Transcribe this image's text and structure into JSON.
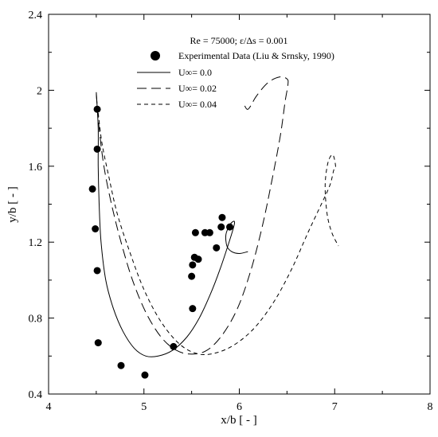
{
  "chart_data": {
    "type": "scatter",
    "title": "",
    "xlabel": "x/b [ - ]",
    "ylabel": "y/b [ - ]",
    "xlim": [
      4,
      8
    ],
    "ylim": [
      0.4,
      2.4
    ],
    "x_ticks": [
      "4",
      "5",
      "6",
      "7",
      "8"
    ],
    "y_ticks": [
      "0.4",
      "0.8",
      "1.2",
      "1.6",
      "2",
      "2.4"
    ],
    "grid": false,
    "legend_position": "top-center",
    "legend_header": "Re = 75000; ε/Δs = 0.001",
    "legend": {
      "markers": "Experimental Data (Liu & Srnsky, 1990)",
      "u0": "U∞= 0.0",
      "u002": "U∞= 0.02",
      "u004": "U∞= 0.04"
    },
    "experimental_points": [
      {
        "x": 4.51,
        "y": 1.9
      },
      {
        "x": 4.51,
        "y": 1.69
      },
      {
        "x": 4.46,
        "y": 1.48
      },
      {
        "x": 4.49,
        "y": 1.27
      },
      {
        "x": 4.51,
        "y": 1.05
      },
      {
        "x": 4.52,
        "y": 0.67
      },
      {
        "x": 4.76,
        "y": 0.55
      },
      {
        "x": 5.01,
        "y": 0.5
      },
      {
        "x": 5.31,
        "y": 0.65
      },
      {
        "x": 5.51,
        "y": 0.85
      },
      {
        "x": 5.5,
        "y": 1.02
      },
      {
        "x": 5.51,
        "y": 1.08
      },
      {
        "x": 5.53,
        "y": 1.12
      },
      {
        "x": 5.57,
        "y": 1.11
      },
      {
        "x": 5.54,
        "y": 1.25
      },
      {
        "x": 5.64,
        "y": 1.25
      },
      {
        "x": 5.69,
        "y": 1.25
      },
      {
        "x": 5.76,
        "y": 1.17
      },
      {
        "x": 5.81,
        "y": 1.28
      },
      {
        "x": 5.82,
        "y": 1.33
      },
      {
        "x": 5.9,
        "y": 1.28
      }
    ],
    "series": [
      {
        "name": "U∞= 0.0",
        "style": "solid",
        "x": [
          4.5,
          4.52,
          4.52,
          4.53,
          4.55,
          4.6,
          4.68,
          4.78,
          4.9,
          5.02,
          5.15,
          5.3,
          5.45,
          5.58,
          5.7,
          5.8,
          5.88,
          5.93,
          5.95,
          5.94,
          5.9,
          5.86,
          5.87,
          5.92,
          6.0,
          6.09
        ],
        "y": [
          1.99,
          1.8,
          1.6,
          1.4,
          1.2,
          1.0,
          0.85,
          0.73,
          0.64,
          0.6,
          0.6,
          0.63,
          0.7,
          0.8,
          0.93,
          1.06,
          1.18,
          1.26,
          1.3,
          1.31,
          1.29,
          1.24,
          1.18,
          1.15,
          1.14,
          1.15
        ]
      },
      {
        "name": "U∞= 0.02",
        "style": "long-dash",
        "x": [
          4.5,
          4.53,
          4.58,
          4.66,
          4.76,
          4.88,
          5.02,
          5.18,
          5.34,
          5.5,
          5.66,
          5.82,
          5.98,
          6.12,
          6.24,
          6.34,
          6.43,
          6.48,
          6.51,
          6.5,
          6.42,
          6.3,
          6.18,
          6.09,
          6.04
        ],
        "y": [
          1.98,
          1.8,
          1.6,
          1.4,
          1.2,
          1.0,
          0.83,
          0.7,
          0.63,
          0.61,
          0.63,
          0.71,
          0.85,
          1.05,
          1.28,
          1.52,
          1.76,
          1.94,
          2.03,
          2.06,
          2.07,
          2.04,
          1.97,
          1.9,
          1.94
        ]
      },
      {
        "name": "U∞= 0.04",
        "style": "short-dash",
        "x": [
          4.52,
          4.56,
          4.63,
          4.72,
          4.85,
          5.0,
          5.18,
          5.38,
          5.58,
          5.78,
          5.98,
          6.18,
          6.38,
          6.56,
          6.72,
          6.86,
          6.95,
          6.99,
          7.01,
          6.98,
          6.93,
          6.9,
          6.92,
          6.97,
          7.04
        ],
        "y": [
          1.88,
          1.72,
          1.55,
          1.35,
          1.15,
          0.95,
          0.78,
          0.66,
          0.61,
          0.62,
          0.67,
          0.76,
          0.9,
          1.07,
          1.25,
          1.4,
          1.5,
          1.58,
          1.6,
          1.66,
          1.62,
          1.5,
          1.35,
          1.25,
          1.18
        ]
      }
    ]
  }
}
